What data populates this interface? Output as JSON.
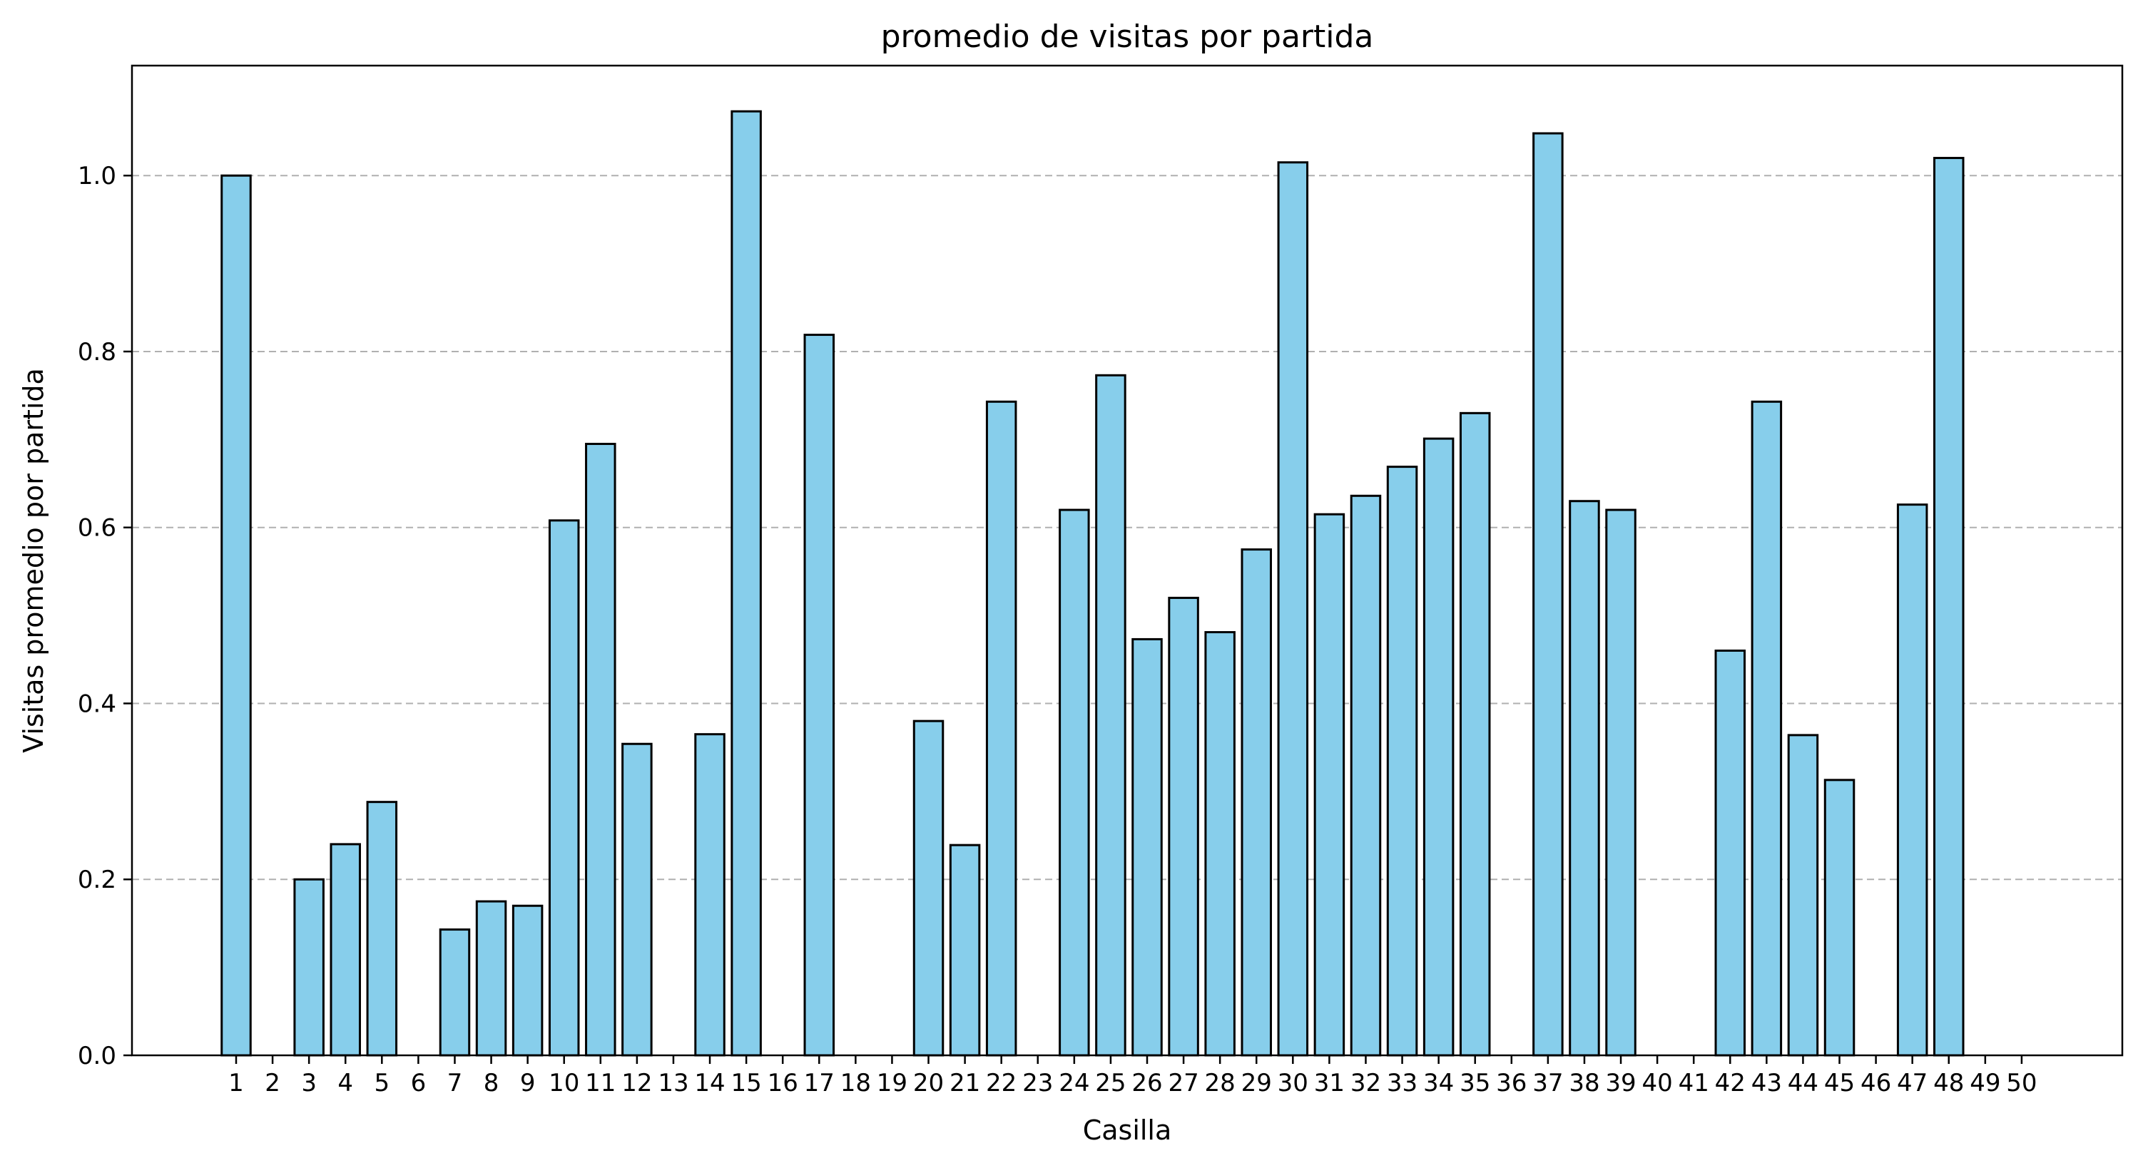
{
  "chart_data": {
    "type": "bar",
    "title": "promedio de visitas por partida",
    "xlabel": "Casilla",
    "ylabel": "Visitas promedio por partida",
    "categories": [
      "1",
      "2",
      "3",
      "4",
      "5",
      "6",
      "7",
      "8",
      "9",
      "10",
      "11",
      "12",
      "13",
      "14",
      "15",
      "16",
      "17",
      "18",
      "19",
      "20",
      "21",
      "22",
      "23",
      "24",
      "25",
      "26",
      "27",
      "28",
      "29",
      "30",
      "31",
      "32",
      "33",
      "34",
      "35",
      "36",
      "37",
      "38",
      "39",
      "40",
      "41",
      "42",
      "43",
      "44",
      "45",
      "46",
      "47",
      "48",
      "49",
      "50"
    ],
    "values": [
      1.0,
      0.0,
      0.2,
      0.24,
      0.288,
      0.0,
      0.143,
      0.175,
      0.17,
      0.608,
      0.695,
      0.354,
      0.0,
      0.365,
      1.073,
      0.0,
      0.819,
      0.0,
      0.0,
      0.38,
      0.239,
      0.743,
      0.0,
      0.62,
      0.773,
      0.473,
      0.52,
      0.481,
      0.575,
      1.015,
      0.615,
      0.636,
      0.669,
      0.701,
      0.73,
      0.0,
      1.048,
      0.63,
      0.62,
      0.0,
      0.0,
      0.46,
      0.743,
      0.364,
      0.313,
      0.0,
      0.626,
      1.02,
      0.0,
      0.0
    ],
    "ylim": [
      0,
      1.125
    ],
    "yticks": [
      "0.0",
      "0.2",
      "0.4",
      "0.6",
      "0.8",
      "1.0"
    ],
    "grid": "y",
    "bar_color": "#87ceeb",
    "edge_color": "#000000"
  }
}
